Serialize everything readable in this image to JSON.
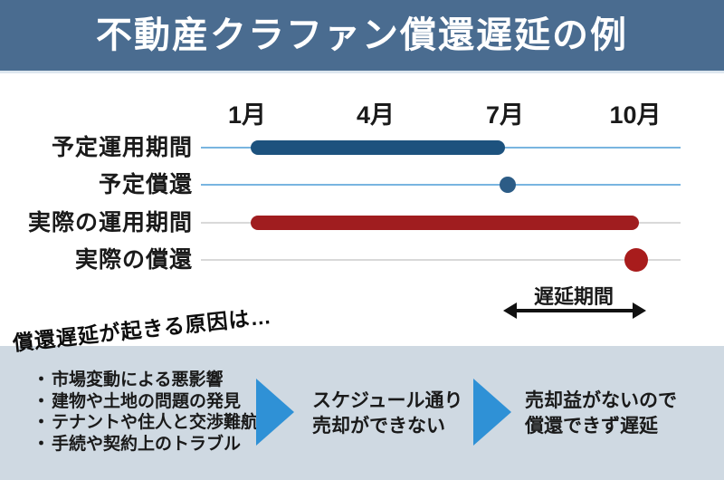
{
  "header": {
    "title": "不動産クラファン償還遅延の例"
  },
  "chart_data": {
    "type": "timeline",
    "title": "不動産クラファン償還遅延の例",
    "x_axis": {
      "tick_labels": [
        "1月",
        "4月",
        "7月",
        "10月"
      ],
      "unit": "month"
    },
    "months": [
      "1月",
      "4月",
      "7月",
      "10月"
    ],
    "rows": [
      {
        "label": "予定運用期間",
        "mark": "bar",
        "start": "1月",
        "end": "7月",
        "color": "#1d527e",
        "track_color": "#79b5e0"
      },
      {
        "label": "予定償還",
        "mark": "dot",
        "at": "7月",
        "color": "#2c5c86",
        "track_color": "#79b5e0"
      },
      {
        "label": "実際の運用期間",
        "mark": "bar",
        "start": "1月",
        "end": "10月",
        "color": "#a01d1f",
        "track_color": "#d9d9d9"
      },
      {
        "label": "実際の償還",
        "mark": "dot",
        "at": "10月",
        "color": "#a81c1c",
        "track_color": "#d9d9d9"
      }
    ],
    "annotation": {
      "label": "遅延期間",
      "from": "7月",
      "to": "10月",
      "style": "double-arrow"
    }
  },
  "causes": {
    "heading": "償還遅延が起きる原因は…",
    "bullet": "・",
    "items": [
      "市場変動による悪影響",
      "建物や土地の問題の発見",
      "テナントや住人と交渉難航",
      "手続や契約上のトラブル"
    ],
    "steps": [
      {
        "lines": [
          "スケジュール通り",
          "売却ができない"
        ]
      },
      {
        "lines": [
          "売却益がないので",
          "償還できず遅延"
        ]
      }
    ]
  },
  "colors": {
    "header_bg": "#4a6c90",
    "header_text": "#ffffff",
    "planned_bar": "#1d527e",
    "planned_dot": "#2c5c86",
    "actual_bar": "#a01d1f",
    "actual_dot": "#a81c1c",
    "track_blue": "#79b5e0",
    "track_gray": "#d9d9d9",
    "panel_bg": "#cfd9e2",
    "flow_triangle": "#2f91d6",
    "arrow": "#111111"
  }
}
